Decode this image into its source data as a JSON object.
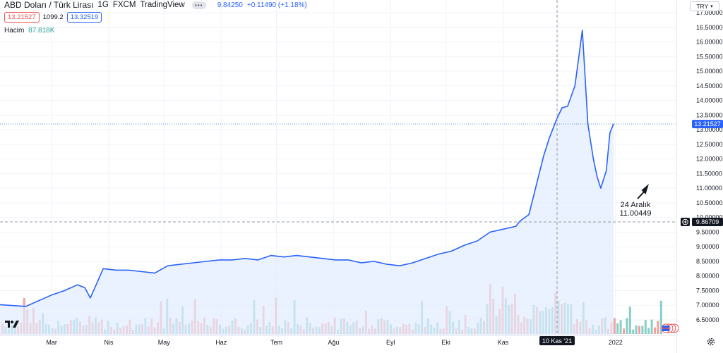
{
  "header": {
    "pair": "ABD Doları / Türk Lirası",
    "interval": "1G",
    "exchange": "FXCM",
    "source": "TradingView",
    "menu_dots": "•••",
    "bid": "13.21527",
    "spread": "1099.2",
    "ask": "13.32519",
    "last": "9.84250",
    "change": "+0.11490 (+1.18%)",
    "volume_label": "Hacim",
    "volume_value": "87.818K"
  },
  "currency_selector": "TRY",
  "price_axis_labels": [
    "17.00000",
    "16.50000",
    "16.00000",
    "15.50000",
    "15.00000",
    "14.50000",
    "14.00000",
    "13.50000",
    "13.00000",
    "12.50000",
    "12.00000",
    "11.50000",
    "11.00000",
    "10.50000",
    "10.00000",
    "9.50000",
    "9.00000",
    "8.50000",
    "8.00000",
    "7.50000",
    "7.00000",
    "6.50000"
  ],
  "current_price_badge": "13.21527",
  "crosshair_price_badge": "9.86709",
  "crosshair_date_badge": "10 Kas '21",
  "time_axis_labels": [
    "Mar",
    "Nis",
    "May",
    "Haz",
    "Tem",
    "Ağu",
    "Eyl",
    "Eki",
    "Kas",
    "Ara",
    "2022"
  ],
  "annotation": {
    "line1": "24 Aralık",
    "line2": "11.00449"
  },
  "colors": {
    "line": "#2962ff",
    "fill": "#e3ecff",
    "vol_up": "#26a69a",
    "vol_down": "#ef5350",
    "badge": "#2962ff",
    "crosshair": "#9598a1"
  },
  "chart_data": {
    "type": "line",
    "title": "ABD Doları / Türk Lirası",
    "xlabel": "",
    "ylabel": "",
    "ylim": [
      6.5,
      17.0
    ],
    "xlim": [
      "2021-02-01",
      "2022-01-01"
    ],
    "series": [
      {
        "name": "ABD Doları / Türk Lirası",
        "x": [
          "2021-02-01",
          "2021-02-15",
          "2021-03-01",
          "2021-03-08",
          "2021-03-15",
          "2021-03-19",
          "2021-03-22",
          "2021-03-29",
          "2021-04-05",
          "2021-04-12",
          "2021-04-19",
          "2021-04-26",
          "2021-05-03",
          "2021-05-10",
          "2021-05-17",
          "2021-05-24",
          "2021-05-31",
          "2021-06-07",
          "2021-06-14",
          "2021-06-21",
          "2021-06-28",
          "2021-07-05",
          "2021-07-12",
          "2021-07-19",
          "2021-07-26",
          "2021-08-02",
          "2021-08-09",
          "2021-08-16",
          "2021-08-23",
          "2021-08-30",
          "2021-09-06",
          "2021-09-13",
          "2021-09-20",
          "2021-09-27",
          "2021-10-04",
          "2021-10-11",
          "2021-10-18",
          "2021-10-25",
          "2021-11-01",
          "2021-11-08",
          "2021-11-10",
          "2021-11-15",
          "2021-11-19",
          "2021-11-23",
          "2021-11-26",
          "2021-11-30",
          "2021-12-03",
          "2021-12-06",
          "2021-12-10",
          "2021-12-14",
          "2021-12-17",
          "2021-12-20",
          "2021-12-22",
          "2021-12-24",
          "2021-12-27",
          "2021-12-29",
          "2021-12-31"
        ],
        "values": [
          7.02,
          6.96,
          7.35,
          7.5,
          7.7,
          7.6,
          7.25,
          8.25,
          8.2,
          8.2,
          8.15,
          8.1,
          8.35,
          8.4,
          8.45,
          8.5,
          8.55,
          8.55,
          8.6,
          8.55,
          8.7,
          8.65,
          8.7,
          8.65,
          8.6,
          8.55,
          8.55,
          8.45,
          8.5,
          8.4,
          8.35,
          8.45,
          8.6,
          8.75,
          8.85,
          9.05,
          9.2,
          9.5,
          9.6,
          9.7,
          9.87,
          10.1,
          11.1,
          12.1,
          12.7,
          13.35,
          13.75,
          13.8,
          14.5,
          16.4,
          13.2,
          12.0,
          11.4,
          11.0,
          11.6,
          12.9,
          13.2
        ]
      }
    ]
  }
}
